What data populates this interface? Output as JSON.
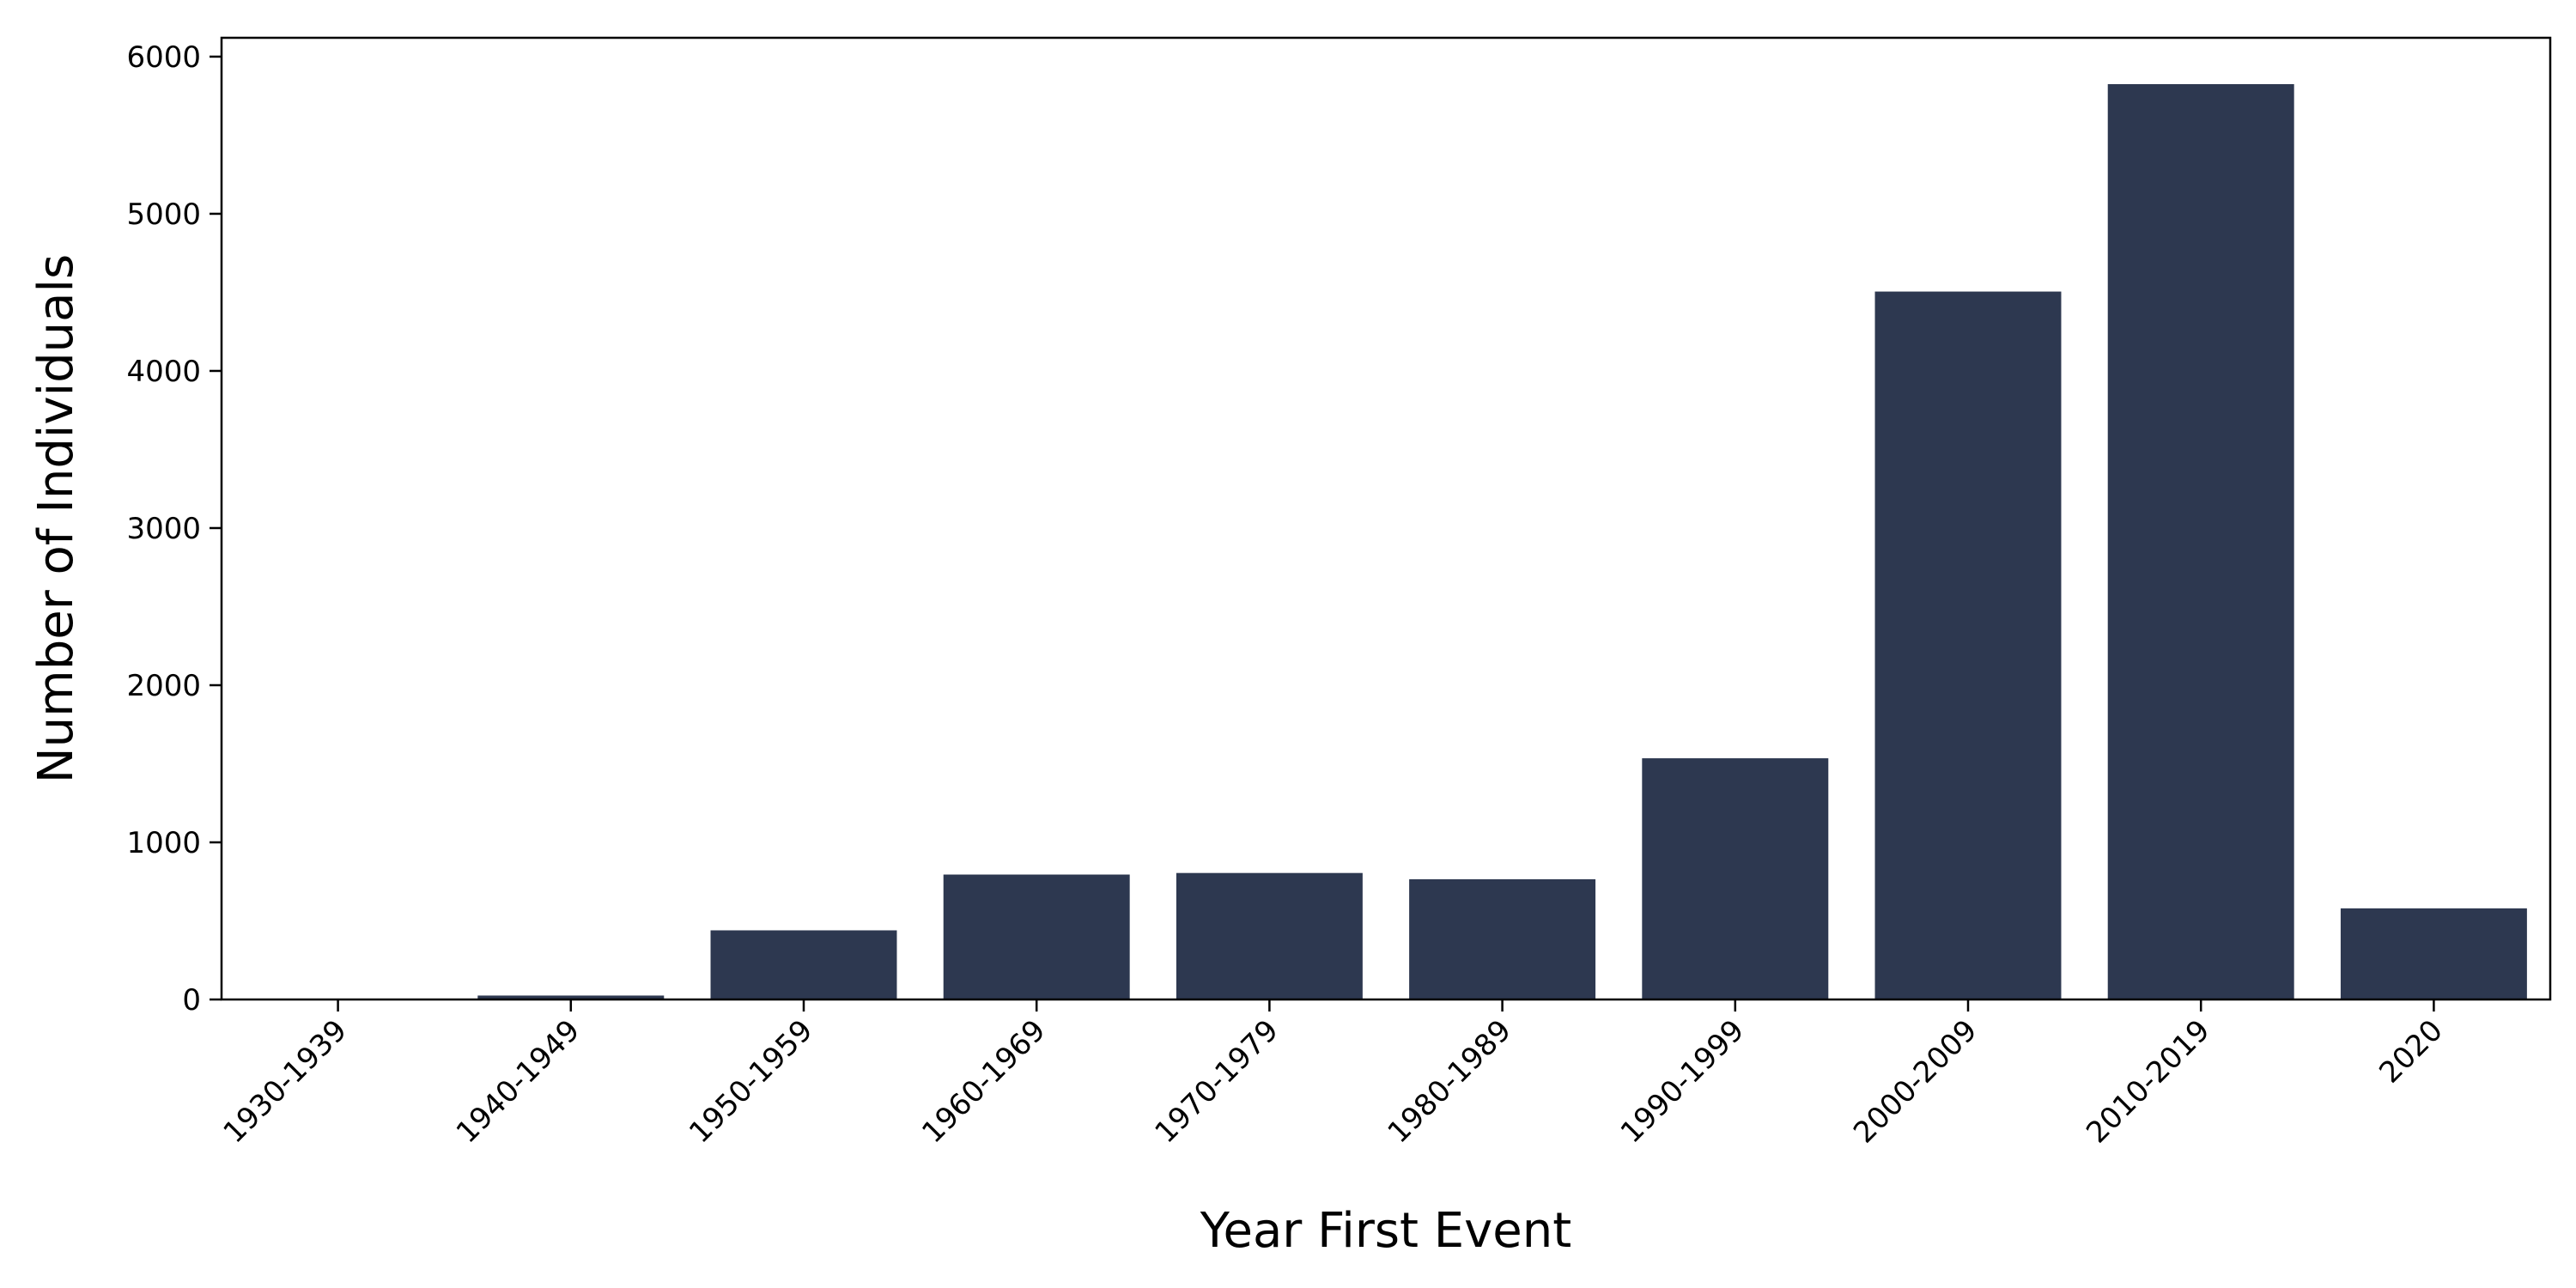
{
  "chart_data": {
    "type": "bar",
    "title": "",
    "xlabel": "Year First Event",
    "ylabel": "Number of Individuals",
    "categories": [
      "1930-1939",
      "1940-1949",
      "1950-1959",
      "1960-1969",
      "1970-1979",
      "1980-1989",
      "1990-1999",
      "2000-2009",
      "2010-2019",
      "2020"
    ],
    "values": [
      5,
      25,
      440,
      795,
      805,
      765,
      1535,
      4505,
      5825,
      580
    ],
    "ylim": [
      0,
      6120
    ],
    "yticks": [
      0,
      1000,
      2000,
      3000,
      4000,
      5000,
      6000
    ],
    "ytick_labels": [
      "0",
      "1000",
      "2000",
      "3000",
      "4000",
      "5000",
      "6000"
    ],
    "bar_color": "#2d3850",
    "grid": false,
    "legend": "none"
  }
}
